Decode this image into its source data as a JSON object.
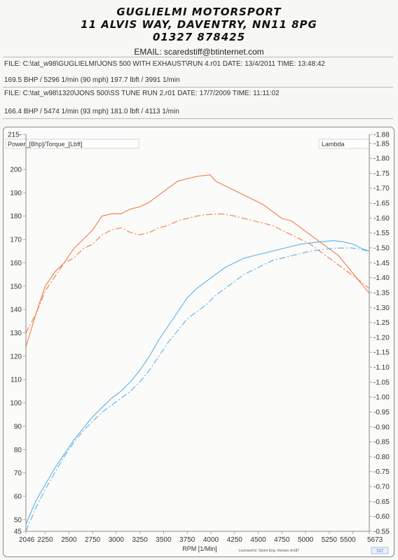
{
  "header": {
    "company": "GUGLIELMI MOTORSPORT",
    "address": "11 ALVIS WAY, DAVENTRY, NN11 8PG",
    "phone": "01327 878425",
    "email": "EMAIL: scaredstiff@btinternet.com"
  },
  "runs": [
    {
      "file": "FILE: C:\\tat_w98\\GUGLIELMI\\JONS 500 WITH EXHAUST\\RUN 4.r01  DATE: 13/4/2011  TIME: 13:48:42",
      "summary": "169.5 BHP / 5296 1/min (90 mph)    197.7 lbft / 3991 1/min"
    },
    {
      "file": "FILE: C:\\tat_w98\\1320\\JONS 500\\SS TUNE RUN 2.r01  DATE: 17/7/2009  TIME: 11:11:02",
      "summary": "166.4 BHP / 5474 1/min (93 mph)    181.0 lbft / 4113 1/min"
    }
  ],
  "footer": {
    "license": "Licensed to: Storm Eng.   Version sh187",
    "logo": "TAT"
  },
  "colors": {
    "torque": "#f07a4a",
    "power": "#5ab3e8",
    "axis": "#888888",
    "tick": "#999999"
  },
  "chart_data": {
    "type": "line",
    "xlabel": "RPM  [1/Min]",
    "ylabel_left": "Power_[Bhp]/Torque_[Lbft]",
    "ylabel_right": "Lambda",
    "xlim": [
      2046,
      5673
    ],
    "ylim_left": [
      45,
      215
    ],
    "ylim_right": [
      0.55,
      1.88
    ],
    "x_ticks": [
      "2046",
      "2250",
      "2500",
      "2750",
      "3000",
      "3250",
      "3500",
      "3750",
      "4000",
      "4250",
      "4500",
      "4750",
      "5000",
      "5250",
      "5500",
      "5673"
    ],
    "x_tick_values": [
      2046,
      2250,
      2500,
      2750,
      3000,
      3250,
      3500,
      3750,
      4000,
      4250,
      4500,
      4750,
      5000,
      5250,
      5500,
      5673
    ],
    "y_left_ticks": [
      45,
      50,
      60,
      70,
      80,
      90,
      100,
      110,
      120,
      130,
      140,
      150,
      160,
      170,
      180,
      190,
      200,
      215
    ],
    "y_right_ticks": [
      "0.55",
      "0.60",
      "0.65",
      "0.70",
      "0.75",
      "0.80",
      "0.85",
      "0.90",
      "0.95",
      "1.00",
      "1.05",
      "1.10",
      "1.15",
      "1.20",
      "1.25",
      "1.30",
      "1.35",
      "1.40",
      "1.45",
      "1.50",
      "1.55",
      "1.60",
      "1.65",
      "1.70",
      "1.75",
      "1.80",
      "1.85",
      "1.88"
    ],
    "y_right_tick_values": [
      0.55,
      0.6,
      0.65,
      0.7,
      0.75,
      0.8,
      0.85,
      0.9,
      0.95,
      1.0,
      1.05,
      1.1,
      1.15,
      1.2,
      1.25,
      1.3,
      1.35,
      1.4,
      1.45,
      1.5,
      1.55,
      1.6,
      1.65,
      1.7,
      1.75,
      1.8,
      1.85,
      1.88
    ],
    "series": [
      {
        "kind": "torque",
        "style": "solid",
        "x": [
          2046,
          2150,
          2250,
          2350,
          2450,
          2550,
          2650,
          2750,
          2850,
          2950,
          3050,
          3150,
          3250,
          3350,
          3450,
          3550,
          3650,
          3750,
          3850,
          3991,
          4050,
          4150,
          4250,
          4350,
          4450,
          4550,
          4650,
          4750,
          4850,
          4950,
          5050,
          5150,
          5250,
          5350,
          5450,
          5550,
          5673
        ],
        "y": [
          124,
          138,
          150,
          156,
          160,
          166,
          170,
          174,
          180,
          181,
          181,
          183,
          184,
          186,
          189,
          192,
          195,
          196,
          197,
          197.7,
          195,
          193,
          191,
          189,
          187,
          185,
          182,
          179,
          178,
          175,
          172,
          169,
          166,
          163,
          158,
          153,
          147
        ]
      },
      {
        "kind": "torque",
        "style": "dashed",
        "x": [
          2046,
          2150,
          2250,
          2350,
          2450,
          2550,
          2650,
          2750,
          2850,
          2950,
          3050,
          3150,
          3250,
          3350,
          3450,
          3550,
          3650,
          3750,
          3850,
          3950,
          4113,
          4250,
          4350,
          4450,
          4550,
          4650,
          4750,
          4850,
          4950,
          5050,
          5150,
          5250,
          5350,
          5450,
          5550,
          5673
        ],
        "y": [
          130,
          138,
          148,
          154,
          160,
          162,
          166,
          168,
          172,
          174,
          175,
          173,
          172,
          173,
          175,
          176,
          178,
          179,
          180,
          180.6,
          181,
          180,
          179,
          178,
          177,
          176,
          174,
          172,
          170,
          168,
          165,
          162,
          159,
          156,
          153,
          149
        ]
      },
      {
        "kind": "power",
        "style": "solid",
        "x": [
          2046,
          2150,
          2250,
          2350,
          2450,
          2550,
          2650,
          2750,
          2850,
          2950,
          3050,
          3150,
          3250,
          3350,
          3450,
          3550,
          3650,
          3750,
          3850,
          3950,
          4050,
          4150,
          4250,
          4350,
          4450,
          4550,
          4650,
          4750,
          4850,
          4950,
          5050,
          5150,
          5296,
          5400,
          5500,
          5600,
          5673
        ],
        "y": [
          48,
          58,
          65,
          72,
          78,
          84,
          89,
          94,
          98,
          102,
          105,
          109,
          114,
          120,
          127,
          133,
          139,
          145,
          149,
          152,
          155,
          158,
          160,
          162,
          163,
          164,
          165,
          166,
          167,
          168,
          168.5,
          169,
          169.5,
          169,
          168,
          166,
          165
        ]
      },
      {
        "kind": "power",
        "style": "dashed",
        "x": [
          2046,
          2150,
          2250,
          2350,
          2450,
          2550,
          2650,
          2750,
          2850,
          2950,
          3050,
          3150,
          3250,
          3350,
          3450,
          3550,
          3650,
          3750,
          3850,
          3950,
          4050,
          4150,
          4250,
          4350,
          4450,
          4550,
          4650,
          4750,
          4850,
          4950,
          5050,
          5150,
          5250,
          5350,
          5474,
          5550,
          5673
        ],
        "y": [
          45,
          55,
          63,
          70,
          77,
          83,
          88,
          92,
          96,
          99,
          102,
          105,
          109,
          114,
          120,
          126,
          131,
          136,
          139,
          142,
          146,
          149,
          152,
          155,
          157,
          159,
          161,
          162,
          163,
          164,
          165,
          165.5,
          166,
          166.3,
          166.4,
          166,
          165
        ]
      }
    ]
  }
}
